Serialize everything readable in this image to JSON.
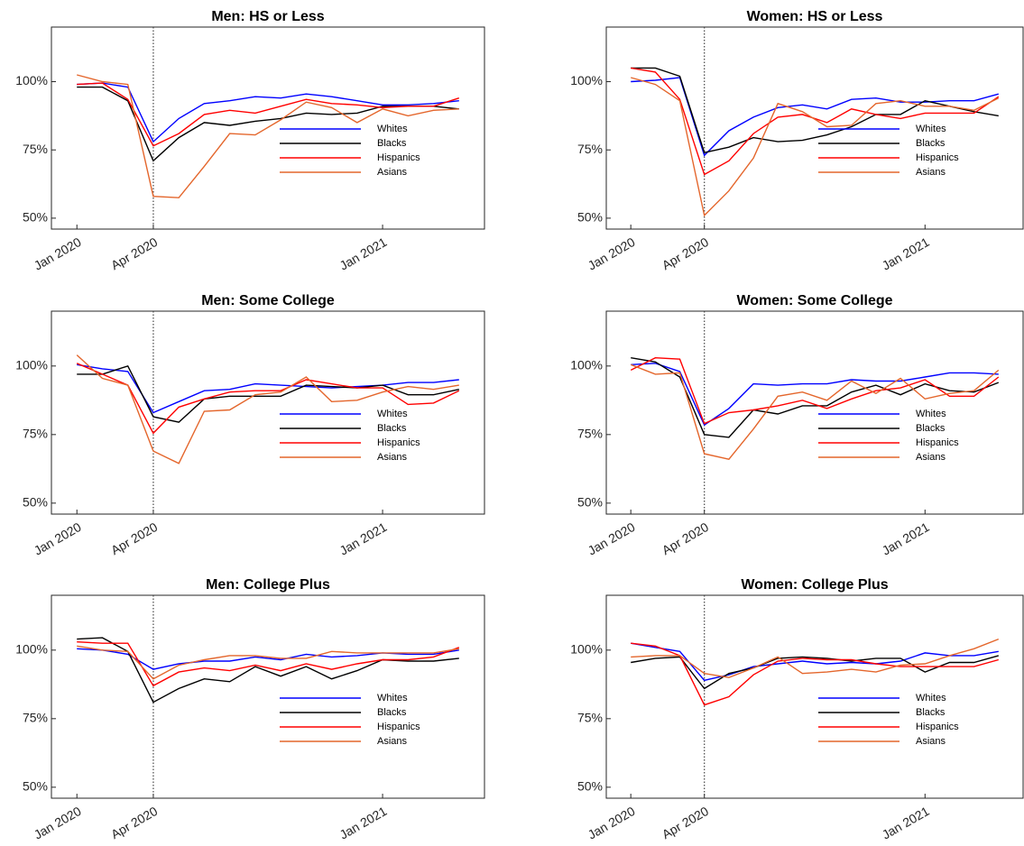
{
  "chart_data": [
    {
      "type": "line",
      "title": "Men: HS or Less",
      "x": [
        "2020-01",
        "2020-02",
        "2020-03",
        "2020-04",
        "2020-05",
        "2020-06",
        "2020-07",
        "2020-08",
        "2020-09",
        "2020-10",
        "2020-11",
        "2020-12",
        "2021-01",
        "2021-02",
        "2021-03",
        "2021-04"
      ],
      "series": [
        {
          "name": "Whites",
          "color": "#0000ff",
          "values": [
            99,
            99.5,
            98,
            78,
            86.5,
            92,
            93,
            94.5,
            94,
            95.5,
            94.5,
            93,
            91.5,
            91.5,
            92,
            93
          ]
        },
        {
          "name": "Blacks",
          "color": "#000000",
          "values": [
            98,
            98,
            93,
            71,
            79.5,
            85,
            84,
            85.5,
            86.5,
            88.5,
            88,
            88.5,
            91,
            91,
            91,
            90
          ]
        },
        {
          "name": "Hispanics",
          "color": "#ff0000",
          "values": [
            99,
            99.5,
            93.5,
            76.5,
            81,
            88,
            89.5,
            88.5,
            91,
            93.5,
            92,
            91.5,
            90.5,
            91,
            91,
            94
          ]
        },
        {
          "name": "Asians",
          "color": "#e4662c",
          "values": [
            102.5,
            100,
            99,
            58,
            57.5,
            69,
            81,
            80.5,
            86,
            92.5,
            90.5,
            85,
            90,
            87.5,
            89.5,
            90
          ]
        }
      ],
      "xlim": [
        "2019-12",
        "2021-05"
      ],
      "xticks": [
        {
          "value": "2020-01",
          "label": "Jan 2020"
        },
        {
          "value": "2020-04",
          "label": "Apr 2020"
        },
        {
          "value": "2021-01",
          "label": "Jan 2021"
        }
      ],
      "ylim": [
        46,
        120
      ],
      "yticks": [
        {
          "value": 50,
          "label": "50%"
        },
        {
          "value": 75,
          "label": "75%"
        },
        {
          "value": 100,
          "label": "100%"
        }
      ],
      "vline": "2020-04",
      "legend": "lower right"
    },
    {
      "type": "line",
      "title": "Women: HS or Less",
      "x": [
        "2020-01",
        "2020-02",
        "2020-03",
        "2020-04",
        "2020-05",
        "2020-06",
        "2020-07",
        "2020-08",
        "2020-09",
        "2020-10",
        "2020-11",
        "2020-12",
        "2021-01",
        "2021-02",
        "2021-03",
        "2021-04"
      ],
      "series": [
        {
          "name": "Whites",
          "color": "#0000ff",
          "values": [
            100,
            100.5,
            101.5,
            73,
            82,
            87,
            90.5,
            91.5,
            90,
            93.5,
            94,
            92.5,
            92.5,
            93,
            93,
            95.5
          ]
        },
        {
          "name": "Blacks",
          "color": "#000000",
          "values": [
            105,
            105,
            102,
            74,
            76,
            79.5,
            78,
            78.5,
            80.5,
            83.5,
            88,
            88,
            93,
            91,
            89,
            87.5
          ]
        },
        {
          "name": "Hispanics",
          "color": "#ff0000",
          "values": [
            105,
            103.5,
            93.5,
            66,
            71,
            81,
            87,
            88,
            85,
            90,
            88,
            86.5,
            88.5,
            88.5,
            88.5,
            94.5
          ]
        },
        {
          "name": "Asians",
          "color": "#e4662c",
          "values": [
            101.5,
            99,
            93,
            51,
            60,
            72,
            92,
            89,
            83.5,
            84,
            92,
            93,
            91,
            91,
            89.5,
            94
          ]
        }
      ],
      "xlim": [
        "2019-12",
        "2021-05"
      ],
      "xticks": [
        {
          "value": "2020-01",
          "label": "Jan 2020"
        },
        {
          "value": "2020-04",
          "label": "Apr 2020"
        },
        {
          "value": "2021-01",
          "label": "Jan 2021"
        }
      ],
      "ylim": [
        46,
        120
      ],
      "yticks": [
        {
          "value": 50,
          "label": "50%"
        },
        {
          "value": 75,
          "label": "75%"
        },
        {
          "value": 100,
          "label": "100%"
        }
      ],
      "vline": "2020-04",
      "legend": "lower right"
    },
    {
      "type": "line",
      "title": "Men: Some College",
      "x": [
        "2020-01",
        "2020-02",
        "2020-03",
        "2020-04",
        "2020-05",
        "2020-06",
        "2020-07",
        "2020-08",
        "2020-09",
        "2020-10",
        "2020-11",
        "2020-12",
        "2021-01",
        "2021-02",
        "2021-03",
        "2021-04"
      ],
      "series": [
        {
          "name": "Whites",
          "color": "#0000ff",
          "values": [
            100.5,
            99,
            98,
            83,
            87,
            91,
            91.5,
            93.5,
            93,
            92.5,
            92,
            92.5,
            93,
            94,
            94,
            95
          ]
        },
        {
          "name": "Blacks",
          "color": "#000000",
          "values": [
            97,
            97,
            100,
            81.5,
            79.5,
            88,
            89,
            89,
            89,
            93,
            92.5,
            92,
            93,
            89.5,
            89.5,
            91.5
          ]
        },
        {
          "name": "Hispanics",
          "color": "#ff0000",
          "values": [
            101,
            97,
            93,
            75.5,
            85,
            88,
            90.5,
            91,
            91,
            95,
            93.5,
            92,
            92,
            86,
            86.5,
            91
          ]
        },
        {
          "name": "Asians",
          "color": "#e4662c",
          "values": [
            104,
            95.5,
            93,
            69,
            64.5,
            83.5,
            84,
            89.5,
            90.5,
            96,
            87,
            87.5,
            90.5,
            92.5,
            91.5,
            93
          ]
        }
      ],
      "xlim": [
        "2019-12",
        "2021-05"
      ],
      "xticks": [
        {
          "value": "2020-01",
          "label": "Jan 2020"
        },
        {
          "value": "2020-04",
          "label": "Apr 2020"
        },
        {
          "value": "2021-01",
          "label": "Jan 2021"
        }
      ],
      "ylim": [
        46,
        120
      ],
      "yticks": [
        {
          "value": 50,
          "label": "50%"
        },
        {
          "value": 75,
          "label": "75%"
        },
        {
          "value": 100,
          "label": "100%"
        }
      ],
      "vline": "2020-04",
      "legend": "lower right"
    },
    {
      "type": "line",
      "title": "Women: Some College",
      "x": [
        "2020-01",
        "2020-02",
        "2020-03",
        "2020-04",
        "2020-05",
        "2020-06",
        "2020-07",
        "2020-08",
        "2020-09",
        "2020-10",
        "2020-11",
        "2020-12",
        "2021-01",
        "2021-02",
        "2021-03",
        "2021-04"
      ],
      "series": [
        {
          "name": "Whites",
          "color": "#0000ff",
          "values": [
            100.5,
            101,
            98,
            78.5,
            84.5,
            93.5,
            93,
            93.5,
            93.5,
            95,
            94.5,
            94.5,
            96,
            97.5,
            97.5,
            97
          ]
        },
        {
          "name": "Blacks",
          "color": "#000000",
          "values": [
            103,
            101.5,
            96,
            75,
            74,
            84,
            82.5,
            85.5,
            85.5,
            90.5,
            93,
            89.5,
            93.5,
            91,
            90.5,
            94
          ]
        },
        {
          "name": "Hispanics",
          "color": "#ff0000",
          "values": [
            98.5,
            103,
            102.5,
            79,
            83,
            84,
            85.5,
            87.5,
            84.5,
            88,
            91,
            92,
            95,
            89,
            89,
            96
          ]
        },
        {
          "name": "Asians",
          "color": "#e4662c",
          "values": [
            100.5,
            97,
            97.5,
            68,
            66,
            77,
            89,
            90.5,
            87.5,
            94.5,
            90,
            95.5,
            88,
            90,
            91,
            98.5
          ]
        }
      ],
      "xlim": [
        "2019-12",
        "2021-05"
      ],
      "xticks": [
        {
          "value": "2020-01",
          "label": "Jan 2020"
        },
        {
          "value": "2020-04",
          "label": "Apr 2020"
        },
        {
          "value": "2021-01",
          "label": "Jan 2021"
        }
      ],
      "ylim": [
        46,
        120
      ],
      "yticks": [
        {
          "value": 50,
          "label": "50%"
        },
        {
          "value": 75,
          "label": "75%"
        },
        {
          "value": 100,
          "label": "100%"
        }
      ],
      "vline": "2020-04",
      "legend": "lower right"
    },
    {
      "type": "line",
      "title": "Men: College Plus",
      "x": [
        "2020-01",
        "2020-02",
        "2020-03",
        "2020-04",
        "2020-05",
        "2020-06",
        "2020-07",
        "2020-08",
        "2020-09",
        "2020-10",
        "2020-11",
        "2020-12",
        "2021-01",
        "2021-02",
        "2021-03",
        "2021-04"
      ],
      "series": [
        {
          "name": "Whites",
          "color": "#0000ff",
          "values": [
            100.5,
            100,
            98.5,
            93,
            95,
            96,
            96,
            97.5,
            96.5,
            98.5,
            97.5,
            98,
            99,
            98.5,
            98.5,
            100
          ]
        },
        {
          "name": "Blacks",
          "color": "#000000",
          "values": [
            104,
            104.5,
            99.5,
            81,
            86,
            89.5,
            88.5,
            94,
            90.5,
            94,
            89.5,
            92.5,
            96.5,
            96,
            96,
            97
          ]
        },
        {
          "name": "Hispanics",
          "color": "#ff0000",
          "values": [
            103,
            102.5,
            102.5,
            87,
            92,
            93.5,
            92.5,
            94.5,
            92.5,
            95,
            93,
            95,
            96.5,
            96.5,
            97.5,
            101
          ]
        },
        {
          "name": "Asians",
          "color": "#e4662c",
          "values": [
            101.5,
            100,
            99.5,
            89.5,
            94.5,
            96.5,
            98,
            98,
            97,
            97,
            99.5,
            99,
            99,
            99,
            99,
            100.5
          ]
        }
      ],
      "xlim": [
        "2019-12",
        "2021-05"
      ],
      "xticks": [
        {
          "value": "2020-01",
          "label": "Jan 2020"
        },
        {
          "value": "2020-04",
          "label": "Apr 2020"
        },
        {
          "value": "2021-01",
          "label": "Jan 2021"
        }
      ],
      "ylim": [
        46,
        120
      ],
      "yticks": [
        {
          "value": 50,
          "label": "50%"
        },
        {
          "value": 75,
          "label": "75%"
        },
        {
          "value": 100,
          "label": "100%"
        }
      ],
      "vline": "2020-04",
      "legend": "lower right"
    },
    {
      "type": "line",
      "title": "Women: College Plus",
      "x": [
        "2020-01",
        "2020-02",
        "2020-03",
        "2020-04",
        "2020-05",
        "2020-06",
        "2020-07",
        "2020-08",
        "2020-09",
        "2020-10",
        "2020-11",
        "2020-12",
        "2021-01",
        "2021-02",
        "2021-03",
        "2021-04"
      ],
      "series": [
        {
          "name": "Whites",
          "color": "#0000ff",
          "values": [
            102.5,
            101,
            99.5,
            89,
            91,
            94,
            95,
            96,
            95,
            95.5,
            95,
            96,
            99,
            98,
            98,
            99.5
          ]
        },
        {
          "name": "Blacks",
          "color": "#000000",
          "values": [
            95.5,
            97,
            97.5,
            86,
            91.5,
            93.5,
            97,
            97.5,
            97,
            96,
            97,
            97,
            92,
            95.5,
            95.5,
            98
          ]
        },
        {
          "name": "Hispanics",
          "color": "#ff0000",
          "values": [
            102.5,
            101.5,
            98,
            80,
            83,
            91,
            96,
            97,
            96.5,
            96.5,
            95,
            94,
            94,
            94,
            94,
            96.5
          ]
        },
        {
          "name": "Asians",
          "color": "#e4662c",
          "values": [
            97.5,
            98,
            98,
            91.5,
            90,
            93.5,
            97.5,
            91.5,
            92,
            93,
            92,
            94.5,
            95,
            98,
            100.5,
            104
          ]
        }
      ],
      "xlim": [
        "2019-12",
        "2021-05"
      ],
      "xticks": [
        {
          "value": "2020-01",
          "label": "Jan 2020"
        },
        {
          "value": "2020-04",
          "label": "Apr 2020"
        },
        {
          "value": "2021-01",
          "label": "Jan 2021"
        }
      ],
      "ylim": [
        46,
        120
      ],
      "yticks": [
        {
          "value": 50,
          "label": "50%"
        },
        {
          "value": 75,
          "label": "75%"
        },
        {
          "value": 100,
          "label": "100%"
        }
      ],
      "vline": "2020-04",
      "legend": "lower right"
    }
  ]
}
